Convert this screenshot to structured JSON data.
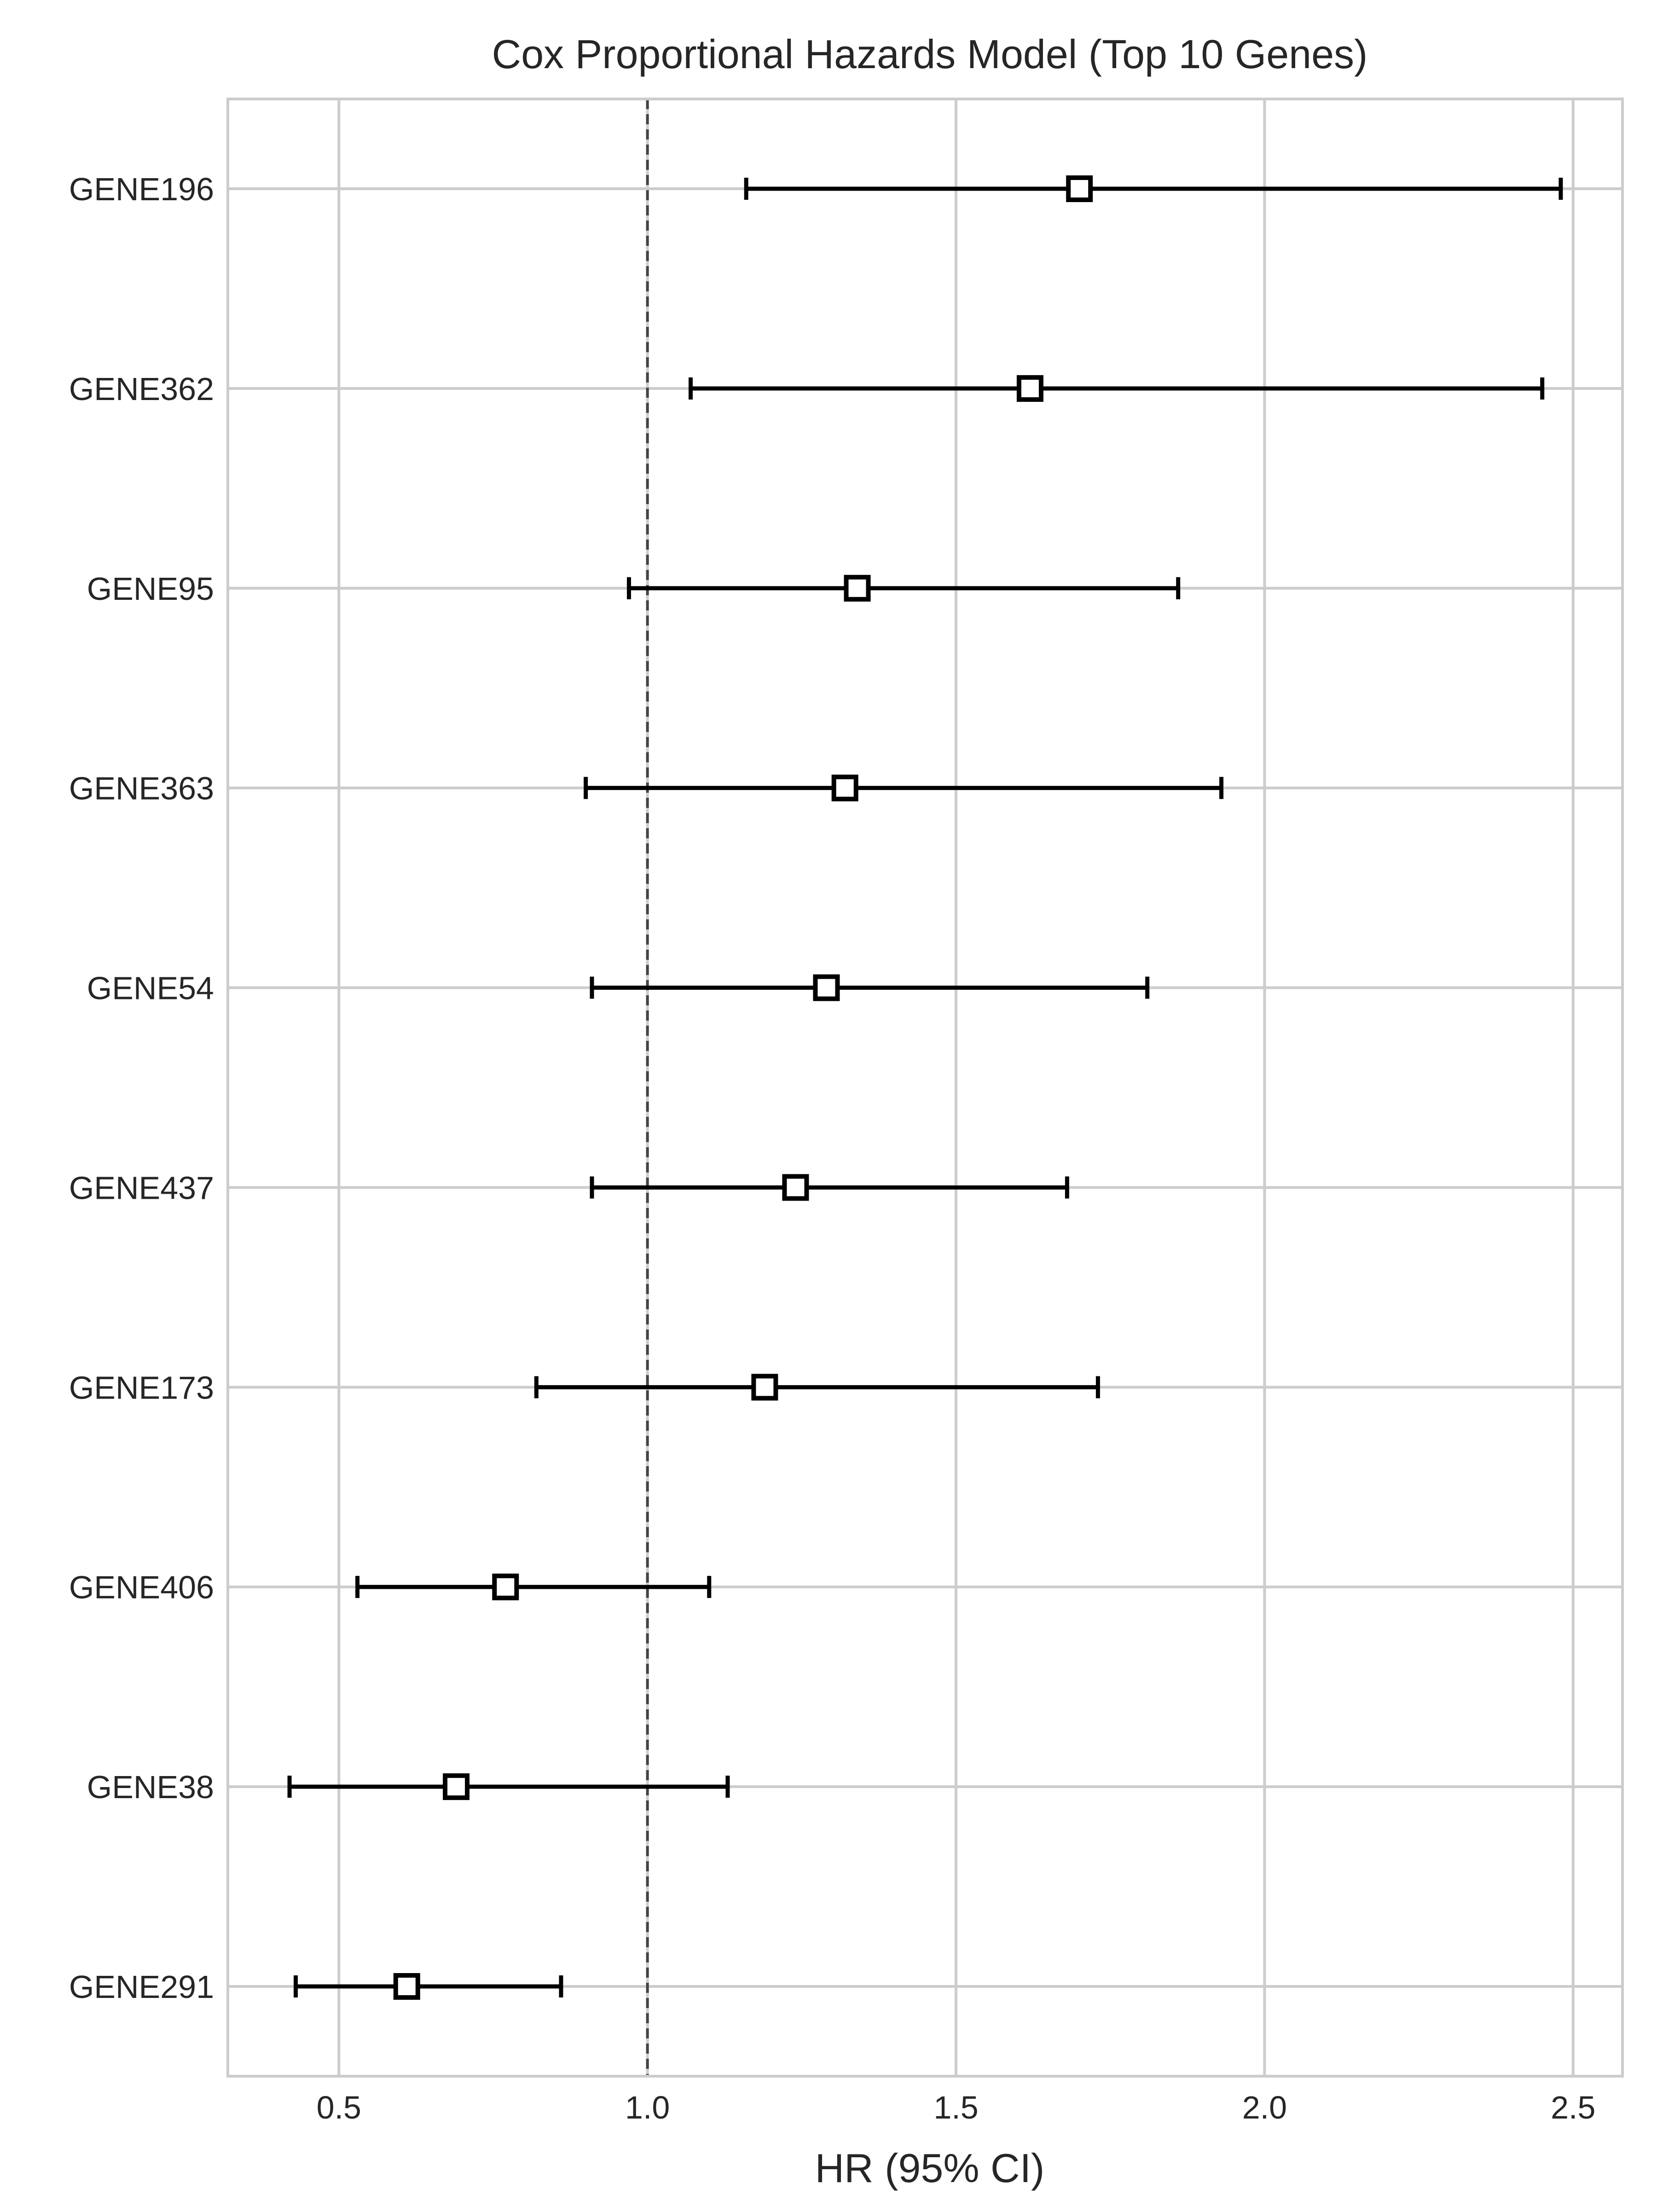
{
  "chart_data": {
    "type": "forest",
    "title": "Cox Proportional Hazards Model (Top 10 Genes)",
    "xlabel": "HR (95% CI)",
    "ylabel": "",
    "xlim": [
      0.32,
      2.58
    ],
    "xticks": [
      0.5,
      1.0,
      1.5,
      2.0,
      2.5
    ],
    "xtick_labels": [
      "0.5",
      "1.0",
      "1.5",
      "2.0",
      "2.5"
    ],
    "reference_line": 1.0,
    "grid": true,
    "marker": "open-square",
    "rows": [
      {
        "label": "GENE196",
        "hr": 1.7,
        "ci_low": 1.16,
        "ci_high": 2.48
      },
      {
        "label": "GENE362",
        "hr": 1.62,
        "ci_low": 1.07,
        "ci_high": 2.45
      },
      {
        "label": "GENE95",
        "hr": 1.34,
        "ci_low": 0.97,
        "ci_high": 1.86
      },
      {
        "label": "GENE363",
        "hr": 1.32,
        "ci_low": 0.9,
        "ci_high": 1.93
      },
      {
        "label": "GENE54",
        "hr": 1.29,
        "ci_low": 0.91,
        "ci_high": 1.81
      },
      {
        "label": "GENE437",
        "hr": 1.24,
        "ci_low": 0.91,
        "ci_high": 1.68
      },
      {
        "label": "GENE173",
        "hr": 1.19,
        "ci_low": 0.82,
        "ci_high": 1.73
      },
      {
        "label": "GENE406",
        "hr": 0.77,
        "ci_low": 0.53,
        "ci_high": 1.1
      },
      {
        "label": "GENE38",
        "hr": 0.69,
        "ci_low": 0.42,
        "ci_high": 1.13
      },
      {
        "label": "GENE291",
        "hr": 0.61,
        "ci_low": 0.43,
        "ci_high": 0.86
      }
    ],
    "colors": {
      "grid": "#cccccc",
      "spine": "#cccccc",
      "marker_edge": "#000000",
      "marker_fill": "#ffffff",
      "errorbar": "#000000",
      "reference_line": "#444444",
      "text": "#262626"
    }
  }
}
